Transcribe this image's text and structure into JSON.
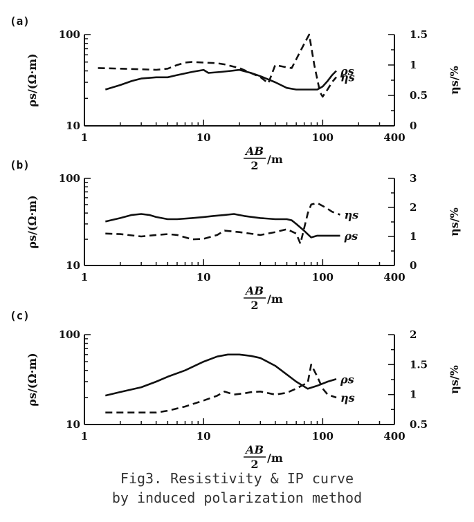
{
  "caption": {
    "line1": "Fig3. Resistivity & IP curve",
    "line2": "by induced polarization method"
  },
  "chart_data": [
    {
      "type": "line",
      "panel_label": "(a)",
      "x_scale": "log",
      "xlim": [
        1,
        400
      ],
      "x_ticks": [
        "1",
        "10",
        "100",
        "400"
      ],
      "xlabel_num": "AB",
      "xlabel_den": "2",
      "xlabel_unit": "/m",
      "left_axis": {
        "scale": "log",
        "ylim": [
          10,
          100
        ],
        "ticks": [
          "10",
          "100"
        ],
        "label": "ρs/(Ω·m)"
      },
      "right_axis": {
        "scale": "linear",
        "ylim": [
          0,
          1.5
        ],
        "ticks": [
          "0",
          "0.5",
          "1",
          "1.5"
        ],
        "tick_values": [
          0,
          0.5,
          1,
          1.5
        ],
        "label": "ηs/%"
      },
      "series": [
        {
          "name": "ρs",
          "axis": "left",
          "style": "solid",
          "x": [
            1.5,
            2,
            2.5,
            3,
            4,
            5,
            6,
            8,
            10,
            11,
            14,
            17,
            20,
            25,
            30,
            40,
            50,
            60,
            70,
            80,
            90,
            100,
            110,
            120,
            130
          ],
          "y": [
            25,
            28,
            31,
            33,
            34,
            34,
            36,
            39,
            41,
            38,
            39,
            40,
            41,
            38,
            35,
            30,
            26,
            25,
            25,
            25,
            25,
            27,
            31,
            36,
            40
          ]
        },
        {
          "name": "ηs",
          "axis": "right",
          "style": "dashed",
          "x": [
            1.3,
            2,
            3,
            4,
            5,
            6,
            7,
            8,
            10,
            13,
            15,
            20,
            30,
            35,
            40,
            50,
            55,
            70,
            77,
            85,
            95,
            100,
            110,
            120,
            130
          ],
          "y": [
            0.95,
            0.94,
            0.93,
            0.92,
            0.94,
            1.0,
            1.04,
            1.05,
            1.04,
            1.03,
            1.01,
            0.95,
            0.8,
            0.7,
            1.0,
            0.96,
            0.95,
            1.35,
            1.5,
            1.0,
            0.55,
            0.48,
            0.6,
            0.72,
            0.8
          ]
        }
      ]
    },
    {
      "type": "line",
      "panel_label": "(b)",
      "x_scale": "log",
      "xlim": [
        1,
        400
      ],
      "x_ticks": [
        "1",
        "10",
        "100",
        "400"
      ],
      "xlabel_num": "AB",
      "xlabel_den": "2",
      "xlabel_unit": "/m",
      "left_axis": {
        "scale": "log",
        "ylim": [
          10,
          100
        ],
        "ticks": [
          "10",
          "100"
        ],
        "label": "ρs/(Ω·m)"
      },
      "right_axis": {
        "scale": "linear",
        "ylim": [
          0,
          3
        ],
        "ticks": [
          "0",
          "1",
          "2",
          "3"
        ],
        "tick_values": [
          0,
          1,
          2,
          3
        ],
        "label": "ηs/%"
      },
      "series": [
        {
          "name": "ρs",
          "axis": "left",
          "style": "solid",
          "x": [
            1.5,
            2,
            2.5,
            3,
            3.5,
            4,
            5,
            6,
            8,
            10,
            12,
            15,
            18,
            22,
            30,
            40,
            50,
            55,
            60,
            70,
            80,
            90,
            100,
            120,
            140
          ],
          "y": [
            32,
            35,
            38,
            39,
            38,
            36,
            34,
            34,
            35,
            36,
            37,
            38,
            39,
            37,
            35,
            34,
            34,
            33,
            30,
            25,
            21,
            22,
            22,
            22,
            22
          ]
        },
        {
          "name": "ηs",
          "axis": "right",
          "style": "dashed",
          "x": [
            1.5,
            2,
            3,
            4,
            5,
            6,
            8,
            10,
            13,
            15,
            20,
            30,
            40,
            50,
            60,
            65,
            75,
            80,
            90,
            100,
            110,
            120,
            140
          ],
          "y": [
            1.1,
            1.08,
            1.0,
            1.05,
            1.08,
            1.05,
            0.9,
            0.92,
            1.05,
            1.2,
            1.15,
            1.05,
            1.15,
            1.25,
            1.1,
            0.75,
            1.8,
            2.1,
            2.15,
            2.05,
            1.95,
            1.85,
            1.75
          ]
        }
      ]
    },
    {
      "type": "line",
      "panel_label": "(c)",
      "x_scale": "log",
      "xlim": [
        1,
        400
      ],
      "x_ticks": [
        "1",
        "10",
        "100",
        "400"
      ],
      "xlabel_num": "AB",
      "xlabel_den": "2",
      "xlabel_unit": "/m",
      "left_axis": {
        "scale": "log",
        "ylim": [
          10,
          100
        ],
        "ticks": [
          "10",
          "100"
        ],
        "label": "ρs/(Ω·m)"
      },
      "right_axis": {
        "scale": "linear",
        "ylim": [
          0.5,
          2
        ],
        "ticks": [
          "0.5",
          "1",
          "1.5",
          "2"
        ],
        "tick_values": [
          0.5,
          1,
          1.5,
          2
        ],
        "label": "ηs/%"
      },
      "series": [
        {
          "name": "ρs",
          "axis": "left",
          "style": "solid",
          "x": [
            1.5,
            2,
            3,
            4,
            5,
            7,
            10,
            13,
            16,
            20,
            25,
            30,
            40,
            50,
            60,
            75,
            90,
            110,
            130
          ],
          "y": [
            21,
            23,
            26,
            30,
            34,
            40,
            50,
            57,
            60,
            60,
            58,
            55,
            45,
            36,
            30,
            25,
            27,
            30,
            32
          ]
        },
        {
          "name": "ηs",
          "axis": "right",
          "style": "dashed",
          "x": [
            1.5,
            2,
            3,
            4,
            5,
            7,
            10,
            13,
            15,
            18,
            22,
            25,
            30,
            40,
            50,
            60,
            75,
            80,
            90,
            100,
            110,
            130
          ],
          "y": [
            0.7,
            0.7,
            0.7,
            0.7,
            0.73,
            0.8,
            0.9,
            0.98,
            1.05,
            1.0,
            1.02,
            1.04,
            1.05,
            1.0,
            1.03,
            1.1,
            1.2,
            1.5,
            1.3,
            1.1,
            1.0,
            0.95
          ]
        }
      ]
    }
  ]
}
